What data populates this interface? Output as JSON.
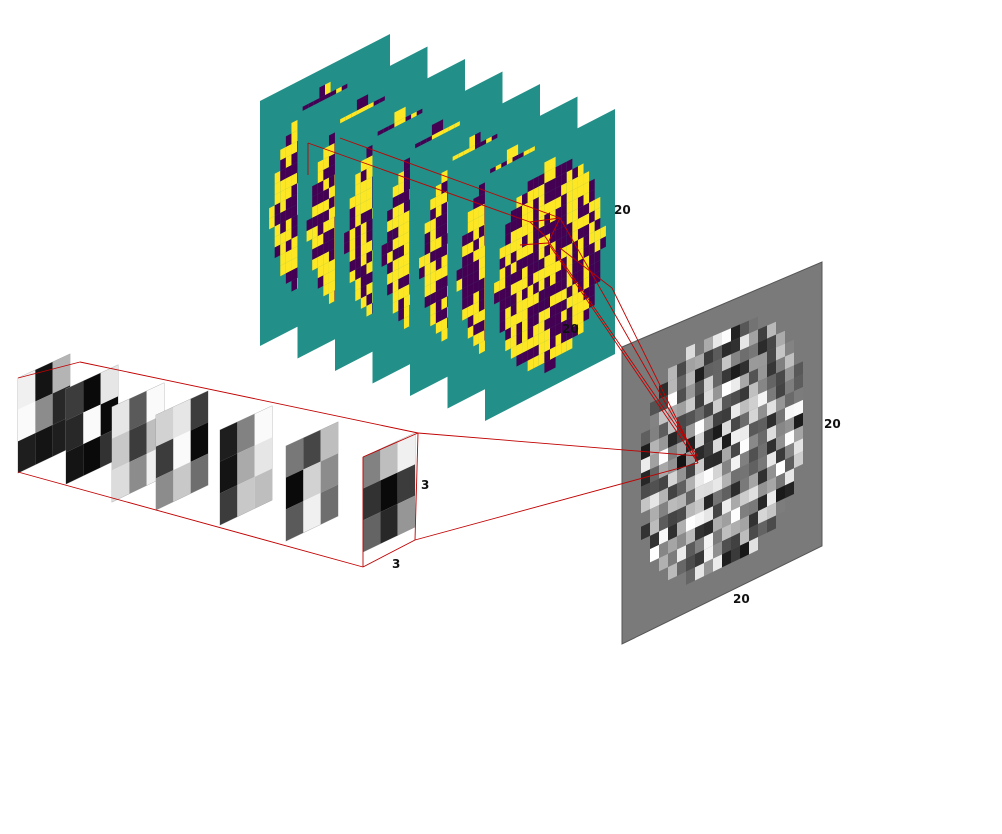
{
  "colors": {
    "input_background": "#229088",
    "input_on": "#fde725",
    "input_off": "#440154",
    "connector": "#c00000",
    "output_background": "#7a7a7a"
  },
  "input_stack": {
    "count": 7,
    "height_label": "20",
    "width_label": "20"
  },
  "kernel_stack": {
    "count": 7,
    "height_label": "3",
    "width_label": "3"
  },
  "output_map": {
    "height_label": "20",
    "width_label": "20"
  }
}
